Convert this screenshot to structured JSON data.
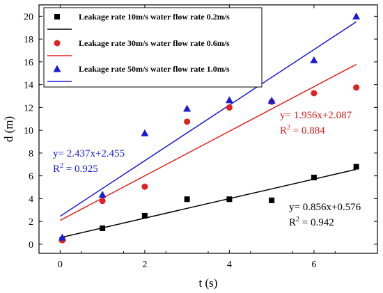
{
  "chart_data": {
    "type": "scatter",
    "xlabel": "t (s)",
    "ylabel": "d (m)",
    "xlim": [
      -0.5,
      7.5
    ],
    "ylim": [
      -0.8,
      21
    ],
    "x_ticks": [
      0,
      2,
      4,
      6
    ],
    "y_ticks": [
      0,
      2,
      4,
      6,
      8,
      10,
      12,
      14,
      16,
      18,
      20
    ],
    "x_tick_labels": [
      "0",
      "2",
      "4",
      "6"
    ],
    "y_tick_labels": [
      "0",
      "2",
      "4",
      "6",
      "8",
      "10",
      "12",
      "14",
      "16",
      "18",
      "20"
    ],
    "grid": false,
    "legend_position": "top-left",
    "series": [
      {
        "name": "Leakage rate 10m/s water flow rate 0.2m/s",
        "marker": "square",
        "color": "#000000",
        "x": [
          0.05,
          1,
          2,
          3,
          4,
          5,
          6,
          7
        ],
        "y": [
          0.4,
          1.4,
          2.5,
          3.95,
          3.95,
          3.85,
          5.85,
          6.8
        ],
        "fit": {
          "slope": 0.856,
          "intercept": 0.576
        }
      },
      {
        "name": "Leakage rate 30m/s water flow rate 0.6m/s",
        "marker": "circle",
        "color": "#e0211f",
        "x": [
          0.05,
          1,
          2,
          3,
          4,
          5,
          6,
          7
        ],
        "y": [
          0.35,
          3.8,
          5.05,
          10.75,
          12.0,
          12.5,
          13.25,
          13.75
        ],
        "fit": {
          "slope": 1.956,
          "intercept": 2.087
        }
      },
      {
        "name": "Leakage rate 50m/s water flow rate 1.0m/s",
        "marker": "triangle",
        "color": "#1a1ad6",
        "x": [
          0.05,
          1,
          2,
          3,
          4,
          5,
          6,
          7
        ],
        "y": [
          0.6,
          4.35,
          9.75,
          11.9,
          12.65,
          12.6,
          16.15,
          20.0
        ],
        "fit": {
          "slope": 2.437,
          "intercept": 2.455
        }
      }
    ],
    "annotations": [
      {
        "series": 0,
        "equation": "y= 0.856x+0.576",
        "r2_label": "R",
        "r2_sup": "2",
        "r2_value": " = 0.942",
        "color": "#000000"
      },
      {
        "series": 1,
        "equation": "y= 1.956x+2.087",
        "r2_label": "R",
        "r2_sup": "2",
        "r2_value": " = 0.884",
        "color": "#e0211f"
      },
      {
        "series": 2,
        "equation": "y= 2.437x+2.455",
        "r2_label": "R",
        "r2_sup": "2",
        "r2_value": " = 0.925",
        "color": "#1a1ad6"
      }
    ]
  }
}
